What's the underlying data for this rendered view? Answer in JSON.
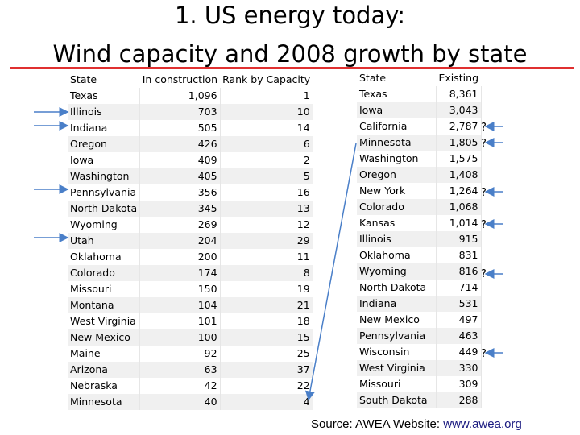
{
  "title_line1": "1. US energy today:",
  "title_line2": "Wind capacity and 2008 growth by state",
  "left_table": {
    "headers": [
      "State",
      "In construction",
      "Rank by Capacity"
    ],
    "rows": [
      [
        "Texas",
        "1,096",
        "1"
      ],
      [
        "Illinois",
        "703",
        "10"
      ],
      [
        "Indiana",
        "505",
        "14"
      ],
      [
        "Oregon",
        "426",
        "6"
      ],
      [
        "Iowa",
        "409",
        "2"
      ],
      [
        "Washington",
        "405",
        "5"
      ],
      [
        "Pennsylvania",
        "356",
        "16"
      ],
      [
        "North Dakota",
        "345",
        "13"
      ],
      [
        "Wyoming",
        "269",
        "12"
      ],
      [
        "Utah",
        "204",
        "29"
      ],
      [
        "Oklahoma",
        "200",
        "11"
      ],
      [
        "Colorado",
        "174",
        "8"
      ],
      [
        "Missouri",
        "150",
        "19"
      ],
      [
        "Montana",
        "104",
        "21"
      ],
      [
        "West Virginia",
        "101",
        "18"
      ],
      [
        "New Mexico",
        "100",
        "15"
      ],
      [
        "Maine",
        "92",
        "25"
      ],
      [
        "Arizona",
        "63",
        "37"
      ],
      [
        "Nebraska",
        "42",
        "22"
      ],
      [
        "Minnesota",
        "40",
        "4"
      ]
    ]
  },
  "right_table": {
    "headers": [
      "State",
      "Existing"
    ],
    "rows": [
      [
        "Texas",
        "8,361"
      ],
      [
        "Iowa",
        "3,043"
      ],
      [
        "California",
        "2,787"
      ],
      [
        "Minnesota",
        "1,805"
      ],
      [
        "Washington",
        "1,575"
      ],
      [
        "Oregon",
        "1,408"
      ],
      [
        "New York",
        "1,264"
      ],
      [
        "Colorado",
        "1,068"
      ],
      [
        "Kansas",
        "1,014"
      ],
      [
        "Illinois",
        "915"
      ],
      [
        "Oklahoma",
        "831"
      ],
      [
        "Wyoming",
        "816"
      ],
      [
        "North Dakota",
        "714"
      ],
      [
        "Indiana",
        "531"
      ],
      [
        "New Mexico",
        "497"
      ],
      [
        "Pennsylvania",
        "463"
      ],
      [
        "Wisconsin",
        "449"
      ],
      [
        "West Virginia",
        "330"
      ],
      [
        "Missouri",
        "309"
      ],
      [
        "South Dakota",
        "288"
      ]
    ]
  },
  "question_mark": "?",
  "source_prefix": "Source:  AWEA Website: ",
  "source_link": "www.awea.org",
  "colors": {
    "arrow": "#4a7fc8",
    "underline": "#e03030"
  }
}
